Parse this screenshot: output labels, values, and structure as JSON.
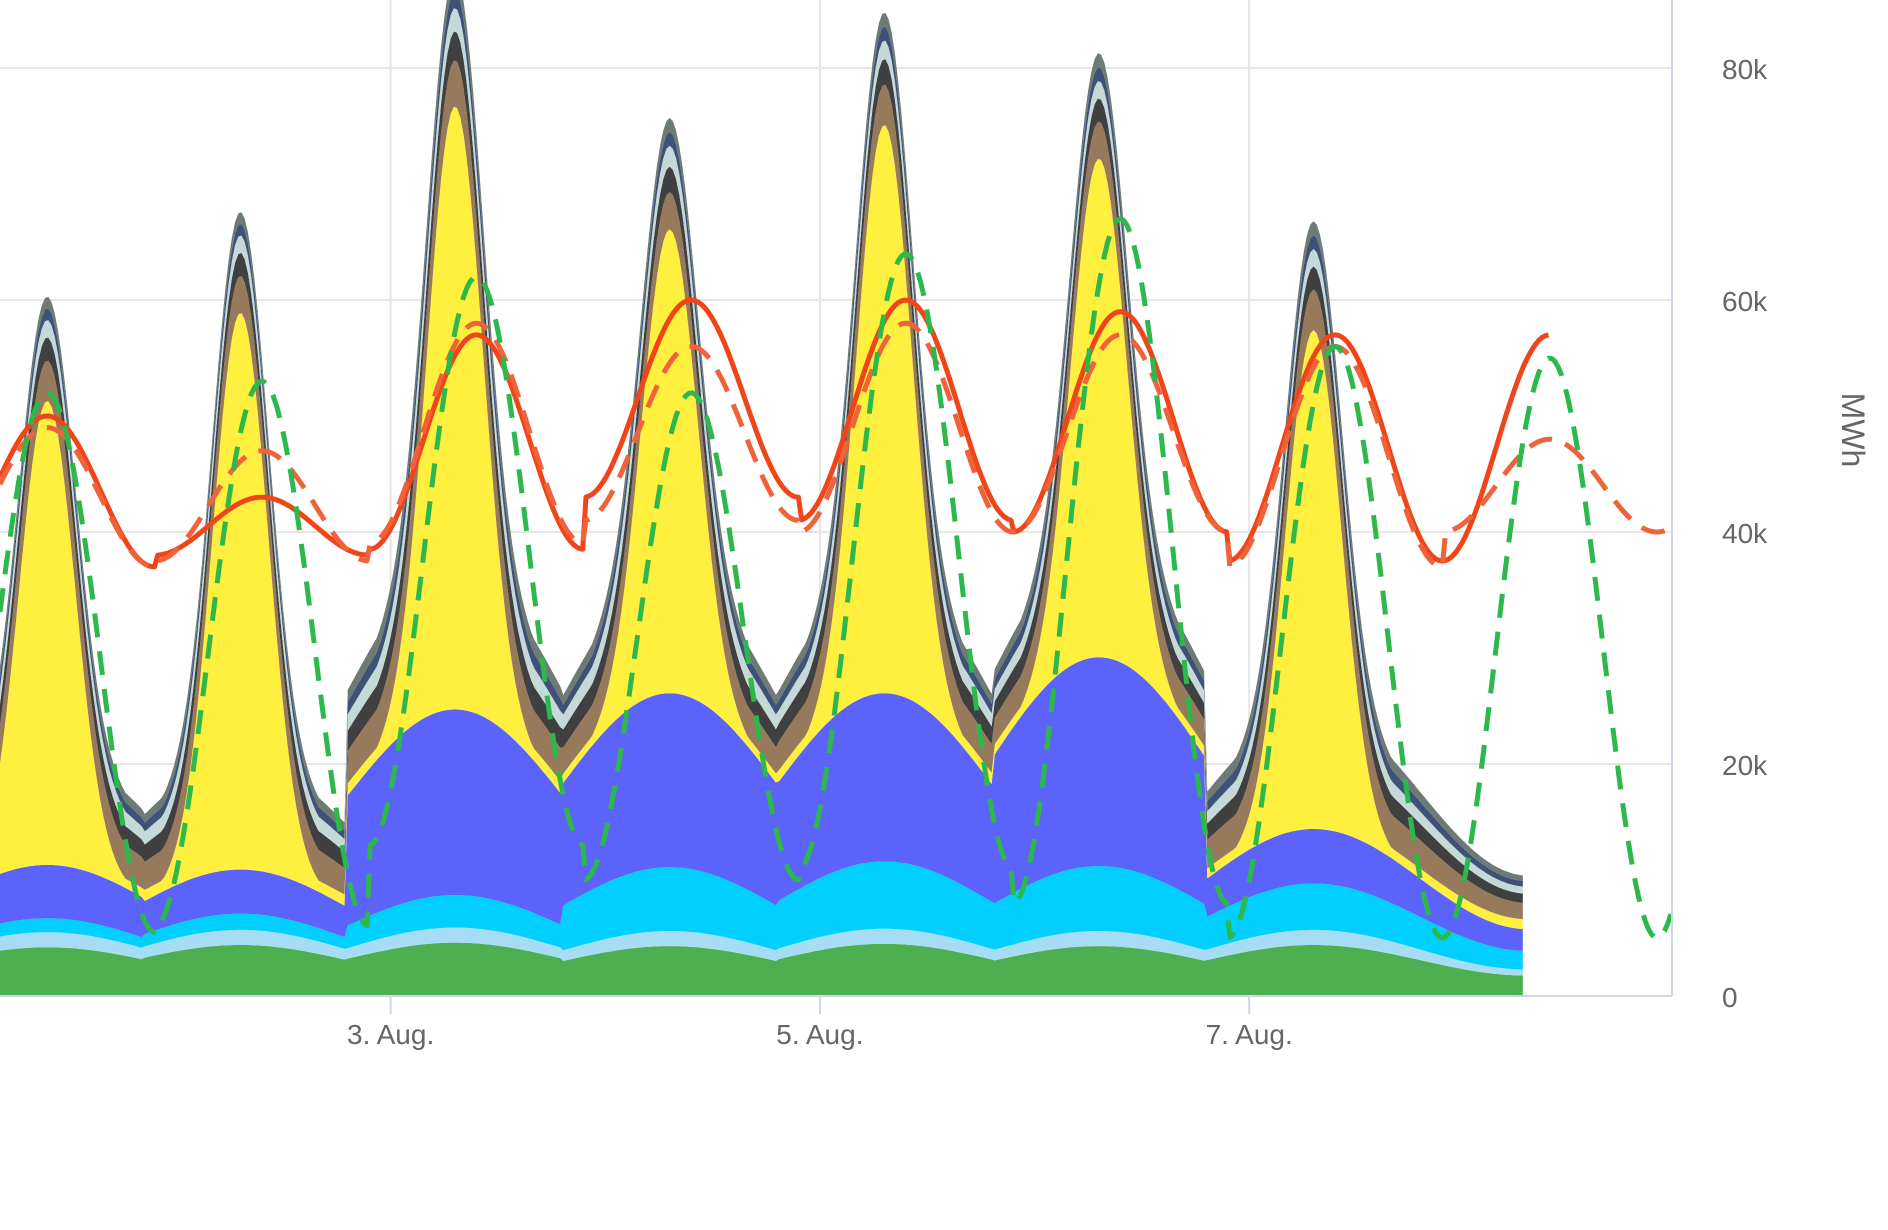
{
  "chart_data": {
    "type": "area",
    "title": "",
    "xlabel": "",
    "ylabel": "MWh",
    "ylim": [
      0,
      80000
    ],
    "x_ticks": [
      {
        "x": 1.0,
        "label": ""
      },
      {
        "x": 3.0,
        "label": "3. Aug."
      },
      {
        "x": 5.0,
        "label": "5. Aug."
      },
      {
        "x": 7.0,
        "label": "7. Aug."
      }
    ],
    "y_ticks": [
      {
        "y": 0,
        "label": "0"
      },
      {
        "y": 20000,
        "label": "20k"
      },
      {
        "y": 40000,
        "label": "40k"
      },
      {
        "y": 60000,
        "label": "60k"
      },
      {
        "y": 80000,
        "label": "80k"
      }
    ],
    "grid": true,
    "x_range": [
      1.18,
      8.97
    ],
    "peak_days": [
      1.4,
      2.3,
      3.3,
      4.3,
      5.3,
      6.3,
      7.3
    ],
    "stack_x_end": 8.28,
    "stack_layers": [
      {
        "color": "#4caf50",
        "values": [
          4200,
          4400,
          4600,
          4300,
          4500,
          4300,
          4400
        ]
      },
      {
        "color": "#a6ddf5",
        "values": [
          1300,
          1300,
          1300,
          1300,
          1300,
          1300,
          1300
        ]
      },
      {
        "color": "#00cfff",
        "values": [
          1200,
          1400,
          2800,
          5500,
          5800,
          5600,
          4000
        ]
      },
      {
        "color": "#5b63fb",
        "values": [
          4600,
          3800,
          16000,
          15000,
          14500,
          18000,
          4700
        ]
      },
      {
        "color": "#ffef3f",
        "values": [
          40000,
          48000,
          52000,
          40000,
          49000,
          43000,
          43000
        ]
      },
      {
        "color": "#977a5b",
        "values": [
          3500,
          3200,
          4000,
          3200,
          3500,
          3200,
          3500
        ]
      },
      {
        "color": "#404040",
        "values": [
          2000,
          2000,
          2500,
          2200,
          2200,
          2000,
          2000
        ]
      },
      {
        "color": "#c6d9d9",
        "values": [
          1500,
          1500,
          2000,
          1800,
          1600,
          1500,
          1500
        ]
      },
      {
        "color": "#3e5277",
        "values": [
          1000,
          1000,
          1500,
          1200,
          1200,
          1200,
          1200
        ]
      },
      {
        "color": "#6e7a74",
        "values": [
          1000,
          1000,
          1500,
          1200,
          1200,
          1200,
          1200
        ]
      }
    ],
    "lines": [
      {
        "color": "#f04518",
        "dash": "solid",
        "x_end": 8.4,
        "peaks": [
          50000,
          43000,
          57000,
          60000,
          60000,
          59000,
          57000
        ],
        "troughs": [
          37000,
          38000,
          38500,
          43000,
          41000,
          40000,
          37500
        ]
      },
      {
        "color": "#f0623a",
        "dash": "dashed",
        "x_end": 8.97,
        "peaks": [
          49000,
          47000,
          58000,
          56000,
          58000,
          57000,
          56000,
          48000
        ],
        "troughs": [
          37000,
          37500,
          39000,
          41000,
          40000,
          40000,
          37000,
          40000
        ]
      },
      {
        "color": "#2db84c",
        "dash": "dashed",
        "x_end": 8.97,
        "peaks": [
          52000,
          53000,
          62000,
          52000,
          64000,
          67000,
          56000,
          55000
        ],
        "troughs": [
          5500,
          6000,
          13000,
          10000,
          11000,
          8000,
          5000,
          5000
        ]
      }
    ]
  }
}
